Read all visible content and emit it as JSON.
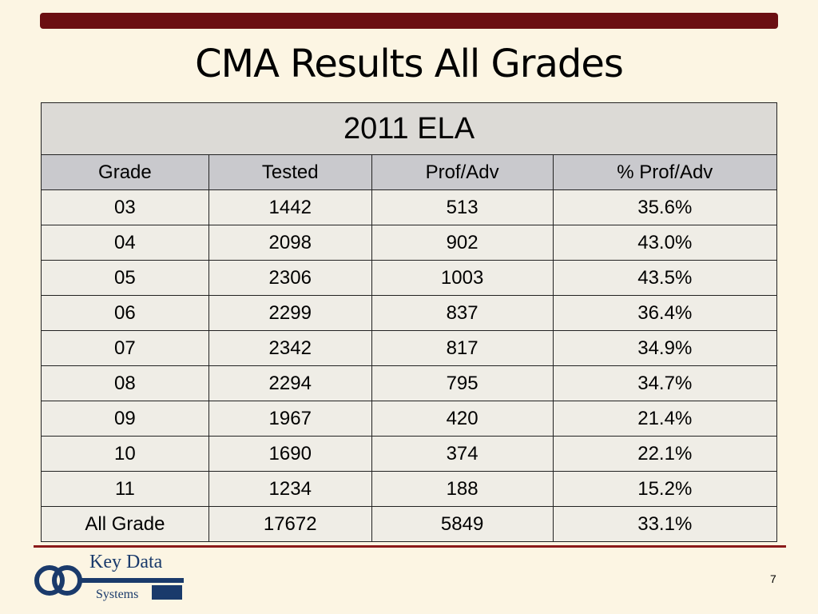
{
  "slide": {
    "title": "CMA Results All Grades",
    "page_number": "7"
  },
  "table": {
    "caption": "2011 ELA",
    "header": [
      "Grade",
      "Tested",
      "Prof/Adv",
      "% Prof/Adv"
    ],
    "rows": [
      [
        "03",
        "1442",
        "513",
        "35.6%"
      ],
      [
        "04",
        "2098",
        "902",
        "43.0%"
      ],
      [
        "05",
        "2306",
        "1003",
        "43.5%"
      ],
      [
        "06",
        "2299",
        "837",
        "36.4%"
      ],
      [
        "07",
        "2342",
        "817",
        "34.9%"
      ],
      [
        "08",
        "2294",
        "795",
        "34.7%"
      ],
      [
        "09",
        "1967",
        "420",
        "21.4%"
      ],
      [
        "10",
        "1690",
        "374",
        "22.1%"
      ],
      [
        "11",
        "1234",
        "188",
        "15.2%"
      ],
      [
        "All Grade",
        "17672",
        "5849",
        "33.1%"
      ]
    ]
  },
  "logo": {
    "name": "Key Data",
    "sub": "Systems"
  }
}
